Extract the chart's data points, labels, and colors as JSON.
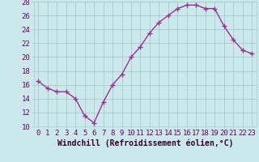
{
  "x": [
    0,
    1,
    2,
    3,
    4,
    5,
    6,
    7,
    8,
    9,
    10,
    11,
    12,
    13,
    14,
    15,
    16,
    17,
    18,
    19,
    20,
    21,
    22,
    23
  ],
  "y": [
    16.5,
    15.5,
    15.0,
    15.0,
    14.0,
    11.5,
    10.5,
    13.5,
    16.0,
    17.5,
    20.0,
    21.5,
    23.5,
    25.0,
    26.0,
    27.0,
    27.5,
    27.5,
    27.0,
    27.0,
    24.5,
    22.5,
    21.0,
    20.5
  ],
  "line_color": "#993399",
  "marker": "+",
  "marker_size": 4,
  "bg_color": "#cce8ea",
  "grid_color": "#aacccc",
  "xlabel": "Windchill (Refroidissement éolien,°C)",
  "xlim": [
    -0.5,
    23.5
  ],
  "ylim": [
    10,
    28
  ],
  "yticks": [
    10,
    12,
    14,
    16,
    18,
    20,
    22,
    24,
    26,
    28
  ],
  "xticks": [
    0,
    1,
    2,
    3,
    4,
    5,
    6,
    7,
    8,
    9,
    10,
    11,
    12,
    13,
    14,
    15,
    16,
    17,
    18,
    19,
    20,
    21,
    22,
    23
  ],
  "xlabel_fontsize": 7,
  "tick_fontsize": 6.5,
  "line_width": 1.0
}
